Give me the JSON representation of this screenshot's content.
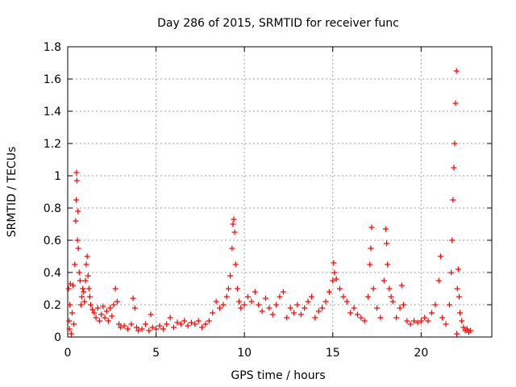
{
  "chart_data": {
    "type": "scatter",
    "title": "Day 286 of 2015, SRMTID for receiver func",
    "xlabel": "GPS time / hours",
    "ylabel": "SRMTID / TECUs",
    "xlim": [
      0,
      24
    ],
    "ylim": [
      0,
      1.8
    ],
    "x_ticks": [
      0,
      5,
      10,
      15,
      20
    ],
    "x_tick_labels": [
      "0",
      "5",
      "10",
      "15",
      "20"
    ],
    "y_ticks": [
      0,
      0.2,
      0.4,
      0.6,
      0.8,
      1,
      1.2,
      1.4,
      1.6,
      1.8
    ],
    "y_tick_labels": [
      "0",
      "0.2",
      "0.4",
      "0.6",
      "0.8",
      "1",
      "1.2",
      "1.4",
      "1.6",
      "1.8"
    ],
    "grid": true,
    "marker": "+",
    "marker_color": "#ff0000",
    "series": [
      {
        "name": "SRMTID",
        "points": [
          [
            0.05,
            0.3
          ],
          [
            0.08,
            0.1
          ],
          [
            0.1,
            0.05
          ],
          [
            0.12,
            0.2
          ],
          [
            0.15,
            0.33
          ],
          [
            0.2,
            0.02
          ],
          [
            0.25,
            0.15
          ],
          [
            0.3,
            0.32
          ],
          [
            0.35,
            0.08
          ],
          [
            0.4,
            0.45
          ],
          [
            0.45,
            0.72
          ],
          [
            0.48,
            0.85
          ],
          [
            0.5,
            1.02
          ],
          [
            0.52,
            0.97
          ],
          [
            0.55,
            0.6
          ],
          [
            0.58,
            0.78
          ],
          [
            0.6,
            0.55
          ],
          [
            0.65,
            0.4
          ],
          [
            0.7,
            0.35
          ],
          [
            0.75,
            0.2
          ],
          [
            0.8,
            0.25
          ],
          [
            0.85,
            0.3
          ],
          [
            0.9,
            0.28
          ],
          [
            0.95,
            0.22
          ],
          [
            1.0,
            0.35
          ],
          [
            1.05,
            0.45
          ],
          [
            1.1,
            0.5
          ],
          [
            1.15,
            0.38
          ],
          [
            1.2,
            0.3
          ],
          [
            1.25,
            0.25
          ],
          [
            1.3,
            0.2
          ],
          [
            1.4,
            0.17
          ],
          [
            1.5,
            0.15
          ],
          [
            1.6,
            0.12
          ],
          [
            1.7,
            0.18
          ],
          [
            1.8,
            0.1
          ],
          [
            1.9,
            0.14
          ],
          [
            2.0,
            0.19
          ],
          [
            2.1,
            0.12
          ],
          [
            2.2,
            0.16
          ],
          [
            2.3,
            0.1
          ],
          [
            2.4,
            0.18
          ],
          [
            2.5,
            0.13
          ],
          [
            2.6,
            0.2
          ],
          [
            2.7,
            0.3
          ],
          [
            2.8,
            0.22
          ],
          [
            2.9,
            0.08
          ],
          [
            3.0,
            0.06
          ],
          [
            3.2,
            0.07
          ],
          [
            3.4,
            0.05
          ],
          [
            3.6,
            0.08
          ],
          [
            3.7,
            0.24
          ],
          [
            3.8,
            0.18
          ],
          [
            3.9,
            0.06
          ],
          [
            4.0,
            0.04
          ],
          [
            4.2,
            0.05
          ],
          [
            4.4,
            0.08
          ],
          [
            4.6,
            0.04
          ],
          [
            4.7,
            0.14
          ],
          [
            4.8,
            0.06
          ],
          [
            5.0,
            0.05
          ],
          [
            5.2,
            0.07
          ],
          [
            5.4,
            0.05
          ],
          [
            5.6,
            0.08
          ],
          [
            5.8,
            0.12
          ],
          [
            6.0,
            0.06
          ],
          [
            6.2,
            0.09
          ],
          [
            6.4,
            0.08
          ],
          [
            6.6,
            0.1
          ],
          [
            6.8,
            0.07
          ],
          [
            7.0,
            0.09
          ],
          [
            7.2,
            0.08
          ],
          [
            7.4,
            0.1
          ],
          [
            7.6,
            0.06
          ],
          [
            7.8,
            0.08
          ],
          [
            8.0,
            0.1
          ],
          [
            8.2,
            0.15
          ],
          [
            8.4,
            0.22
          ],
          [
            8.6,
            0.18
          ],
          [
            8.8,
            0.2
          ],
          [
            9.0,
            0.25
          ],
          [
            9.1,
            0.3
          ],
          [
            9.2,
            0.38
          ],
          [
            9.3,
            0.55
          ],
          [
            9.35,
            0.7
          ],
          [
            9.4,
            0.73
          ],
          [
            9.45,
            0.65
          ],
          [
            9.5,
            0.45
          ],
          [
            9.6,
            0.3
          ],
          [
            9.7,
            0.22
          ],
          [
            9.8,
            0.18
          ],
          [
            10.0,
            0.2
          ],
          [
            10.2,
            0.25
          ],
          [
            10.4,
            0.22
          ],
          [
            10.6,
            0.28
          ],
          [
            10.8,
            0.2
          ],
          [
            11.0,
            0.16
          ],
          [
            11.2,
            0.24
          ],
          [
            11.4,
            0.18
          ],
          [
            11.6,
            0.14
          ],
          [
            11.8,
            0.2
          ],
          [
            12.0,
            0.25
          ],
          [
            12.2,
            0.28
          ],
          [
            12.4,
            0.12
          ],
          [
            12.6,
            0.18
          ],
          [
            12.8,
            0.15
          ],
          [
            13.0,
            0.2
          ],
          [
            13.2,
            0.14
          ],
          [
            13.4,
            0.18
          ],
          [
            13.6,
            0.22
          ],
          [
            13.8,
            0.25
          ],
          [
            14.0,
            0.12
          ],
          [
            14.2,
            0.16
          ],
          [
            14.4,
            0.18
          ],
          [
            14.6,
            0.22
          ],
          [
            14.8,
            0.28
          ],
          [
            15.0,
            0.35
          ],
          [
            15.05,
            0.46
          ],
          [
            15.1,
            0.4
          ],
          [
            15.2,
            0.36
          ],
          [
            15.4,
            0.3
          ],
          [
            15.6,
            0.25
          ],
          [
            15.8,
            0.22
          ],
          [
            16.0,
            0.15
          ],
          [
            16.2,
            0.18
          ],
          [
            16.4,
            0.14
          ],
          [
            16.6,
            0.12
          ],
          [
            16.8,
            0.1
          ],
          [
            17.0,
            0.25
          ],
          [
            17.1,
            0.45
          ],
          [
            17.15,
            0.55
          ],
          [
            17.2,
            0.68
          ],
          [
            17.3,
            0.3
          ],
          [
            17.5,
            0.18
          ],
          [
            17.7,
            0.12
          ],
          [
            17.9,
            0.35
          ],
          [
            18.0,
            0.67
          ],
          [
            18.05,
            0.58
          ],
          [
            18.1,
            0.45
          ],
          [
            18.2,
            0.3
          ],
          [
            18.3,
            0.25
          ],
          [
            18.4,
            0.22
          ],
          [
            18.6,
            0.12
          ],
          [
            18.8,
            0.18
          ],
          [
            18.9,
            0.32
          ],
          [
            19.0,
            0.2
          ],
          [
            19.2,
            0.1
          ],
          [
            19.4,
            0.08
          ],
          [
            19.6,
            0.1
          ],
          [
            19.8,
            0.09
          ],
          [
            20.0,
            0.1
          ],
          [
            20.2,
            0.12
          ],
          [
            20.4,
            0.1
          ],
          [
            20.6,
            0.15
          ],
          [
            20.8,
            0.2
          ],
          [
            21.0,
            0.35
          ],
          [
            21.1,
            0.5
          ],
          [
            21.2,
            0.12
          ],
          [
            21.4,
            0.08
          ],
          [
            21.6,
            0.2
          ],
          [
            21.7,
            0.4
          ],
          [
            21.75,
            0.6
          ],
          [
            21.8,
            0.85
          ],
          [
            21.85,
            1.05
          ],
          [
            21.9,
            1.2
          ],
          [
            21.95,
            1.45
          ],
          [
            22.0,
            1.65
          ],
          [
            22.02,
            0.02
          ],
          [
            22.05,
            0.3
          ],
          [
            22.1,
            0.42
          ],
          [
            22.15,
            0.25
          ],
          [
            22.2,
            0.15
          ],
          [
            22.3,
            0.1
          ],
          [
            22.4,
            0.06
          ],
          [
            22.5,
            0.04
          ],
          [
            22.6,
            0.05
          ],
          [
            22.7,
            0.03
          ],
          [
            22.8,
            0.04
          ]
        ]
      }
    ]
  }
}
